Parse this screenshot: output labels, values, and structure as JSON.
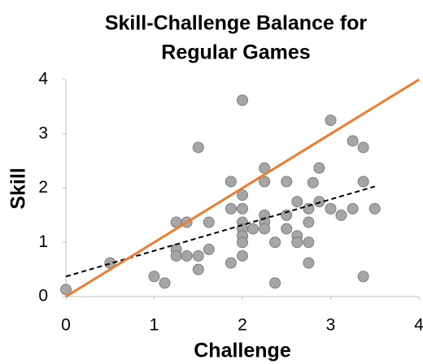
{
  "chart_data": {
    "type": "scatter",
    "title": [
      "Skill-Challenge Balance for",
      "Regular Games"
    ],
    "xlabel": "Challenge",
    "ylabel": "Skill",
    "xlim": [
      0,
      4
    ],
    "ylim": [
      0,
      4
    ],
    "xticks": [
      0,
      1,
      2,
      3,
      4
    ],
    "yticks": [
      0,
      1,
      2,
      3,
      4
    ],
    "grid": false,
    "color": "#a6a6a6",
    "x": [
      0,
      0.5,
      1,
      1.12,
      1.25,
      1.25,
      1.25,
      1.37,
      1.37,
      1.5,
      1.5,
      1.5,
      1.62,
      1.62,
      1.87,
      1.87,
      1.87,
      2,
      2,
      2,
      2,
      2,
      2,
      2,
      2,
      2.12,
      2.25,
      2.25,
      2.25,
      2.25,
      2.25,
      2.37,
      2.37,
      2.5,
      2.5,
      2.5,
      2.62,
      2.62,
      2.62,
      2.75,
      2.75,
      2.75,
      2.75,
      2.8,
      2.87,
      2.87,
      3,
      3,
      3.12,
      3.25,
      3.25,
      3.37,
      3.37,
      3.37,
      3.5
    ],
    "y": [
      0.13,
      0.62,
      0.37,
      0.25,
      1.37,
      0.87,
      0.75,
      1.37,
      0.75,
      2.75,
      0.75,
      0.5,
      1.37,
      0.87,
      2.12,
      1.62,
      0.62,
      3.62,
      1.87,
      1.62,
      1.37,
      1.25,
      1.12,
      1.0,
      0.75,
      1.25,
      2.37,
      2.12,
      1.5,
      1.37,
      1.25,
      1.0,
      0.25,
      2.12,
      1.5,
      1.25,
      1.75,
      1.12,
      1.0,
      1.62,
      1.37,
      1.0,
      0.62,
      2.1,
      2.37,
      1.75,
      3.25,
      1.62,
      1.5,
      2.87,
      1.62,
      2.75,
      2.12,
      0.37,
      1.62
    ],
    "reference_line": {
      "color": "#ed7d31",
      "x": [
        0,
        4
      ],
      "y": [
        0,
        4
      ]
    },
    "trendline": {
      "color": "#000000",
      "x": [
        0,
        3.5
      ],
      "y": [
        0.37,
        2.03
      ]
    }
  }
}
